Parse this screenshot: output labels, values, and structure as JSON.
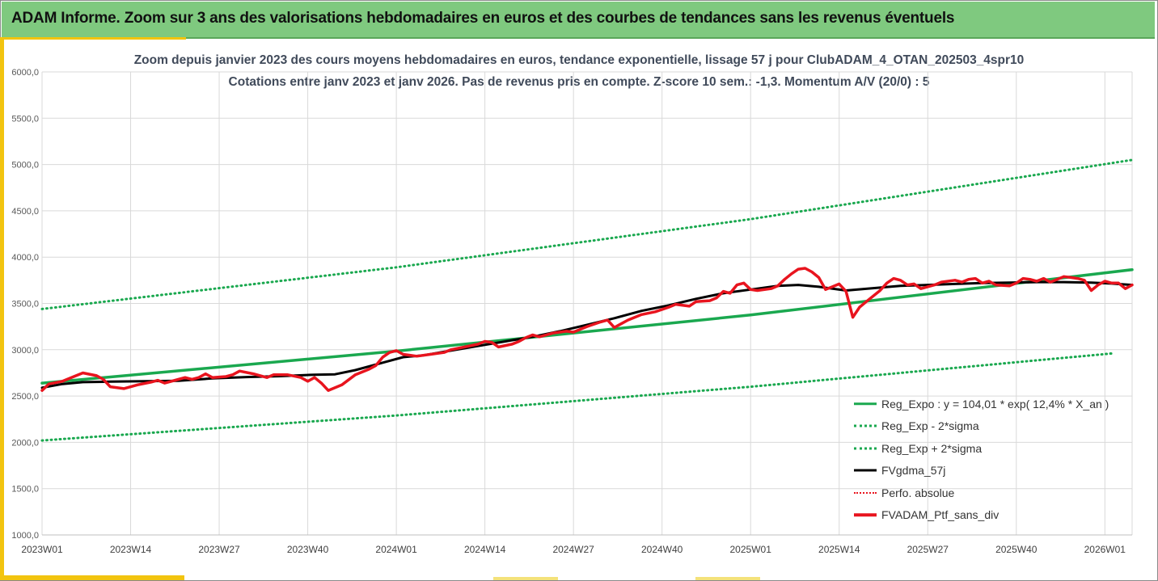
{
  "banner": {
    "title": "ADAM Informe. Zoom sur 3 ans des valorisations hebdomadaires en euros et des courbes de tendances sans les revenus éventuels"
  },
  "colors": {
    "green": "#1aa84f",
    "black": "#000000",
    "red": "#e8141e",
    "banner_bg": "#7fc97f",
    "accent": "#f2c40f"
  },
  "chart_data": {
    "type": "line",
    "title": "Zoom depuis janvier 2023 des cours moyens hebdomadaires  en euros, tendance exponentielle, lissage 57 j pour ClubADAM_4_OTAN_202503_4spr10",
    "subtitle": "Cotations entre janv 2023 et janv 2026. Pas de revenus pris en compte. Z-score 10 sem.: -1,3. Momentum A/V (20/0) : 5",
    "xlabel": "",
    "ylabel": "",
    "ylim": [
      1000,
      6000
    ],
    "y_ticks": [
      "1000,0",
      "1500,0",
      "2000,0",
      "2500,0",
      "3000,0",
      "3500,0",
      "4000,0",
      "4500,0",
      "5000,0",
      "5500,0",
      "6000,0"
    ],
    "x_ticks": [
      "2023W01",
      "2023W14",
      "2023W27",
      "2023W40",
      "2024W01",
      "2024W14",
      "2024W27",
      "2024W40",
      "2025W01",
      "2025W14",
      "2025W27",
      "2025W40",
      "2026W01"
    ],
    "x_tick_weeks": [
      0,
      13,
      26,
      39,
      52,
      65,
      78,
      91,
      104,
      117,
      130,
      143,
      156
    ],
    "x_max_week": 160,
    "grid": true,
    "legend_position": "bottom-right",
    "series": [
      {
        "name": "Reg_Expo : y = 104,01 * exp( 12,4% *  X_an )",
        "style": "solid-green",
        "points": [
          [
            0,
            2640
          ],
          [
            52,
            2985
          ],
          [
            104,
            3375
          ],
          [
            160,
            3865
          ]
        ]
      },
      {
        "name": "Reg_Exp - 2*sigma",
        "style": "dotted-green",
        "points": [
          [
            0,
            2020
          ],
          [
            52,
            2290
          ],
          [
            104,
            2600
          ],
          [
            157,
            2960
          ]
        ]
      },
      {
        "name": "Reg_Exp + 2*sigma",
        "style": "dotted-green",
        "points": [
          [
            0,
            3440
          ],
          [
            52,
            3890
          ],
          [
            104,
            4410
          ],
          [
            160,
            5050
          ]
        ]
      },
      {
        "name": "FVgdma_57j",
        "style": "solid-black",
        "points": [
          [
            0,
            2590
          ],
          [
            3,
            2630
          ],
          [
            6,
            2650
          ],
          [
            10,
            2655
          ],
          [
            15,
            2660
          ],
          [
            20,
            2665
          ],
          [
            25,
            2690
          ],
          [
            30,
            2705
          ],
          [
            35,
            2715
          ],
          [
            40,
            2730
          ],
          [
            43,
            2735
          ],
          [
            46,
            2780
          ],
          [
            50,
            2860
          ],
          [
            53,
            2920
          ],
          [
            56,
            2940
          ],
          [
            60,
            2990
          ],
          [
            64,
            3040
          ],
          [
            68,
            3090
          ],
          [
            72,
            3140
          ],
          [
            76,
            3200
          ],
          [
            80,
            3270
          ],
          [
            84,
            3340
          ],
          [
            88,
            3420
          ],
          [
            92,
            3480
          ],
          [
            96,
            3550
          ],
          [
            100,
            3610
          ],
          [
            104,
            3650
          ],
          [
            108,
            3690
          ],
          [
            111,
            3700
          ],
          [
            114,
            3680
          ],
          [
            118,
            3640
          ],
          [
            122,
            3665
          ],
          [
            126,
            3690
          ],
          [
            130,
            3700
          ],
          [
            134,
            3710
          ],
          [
            138,
            3720
          ],
          [
            142,
            3725
          ],
          [
            146,
            3730
          ],
          [
            150,
            3730
          ],
          [
            154,
            3725
          ],
          [
            157,
            3715
          ],
          [
            160,
            3700
          ]
        ]
      },
      {
        "name": "Perfo. absolue",
        "style": "dotted-red",
        "points": []
      },
      {
        "name": "FVADAM_Ptf_sans_div",
        "style": "solid-red",
        "points": [
          [
            0,
            2560
          ],
          [
            1,
            2630
          ],
          [
            3,
            2660
          ],
          [
            5,
            2720
          ],
          [
            6,
            2750
          ],
          [
            8,
            2720
          ],
          [
            9,
            2680
          ],
          [
            10,
            2600
          ],
          [
            12,
            2580
          ],
          [
            14,
            2620
          ],
          [
            16,
            2650
          ],
          [
            17,
            2670
          ],
          [
            18,
            2640
          ],
          [
            20,
            2680
          ],
          [
            21,
            2700
          ],
          [
            22,
            2680
          ],
          [
            23,
            2700
          ],
          [
            24,
            2740
          ],
          [
            25,
            2700
          ],
          [
            27,
            2710
          ],
          [
            28,
            2730
          ],
          [
            29,
            2770
          ],
          [
            31,
            2740
          ],
          [
            33,
            2700
          ],
          [
            34,
            2730
          ],
          [
            36,
            2730
          ],
          [
            38,
            2700
          ],
          [
            39,
            2660
          ],
          [
            40,
            2700
          ],
          [
            41,
            2640
          ],
          [
            42,
            2560
          ],
          [
            44,
            2620
          ],
          [
            46,
            2730
          ],
          [
            48,
            2790
          ],
          [
            49,
            2830
          ],
          [
            50,
            2920
          ],
          [
            51,
            2970
          ],
          [
            52,
            2990
          ],
          [
            53,
            2950
          ],
          [
            55,
            2930
          ],
          [
            57,
            2950
          ],
          [
            59,
            2970
          ],
          [
            60,
            3000
          ],
          [
            62,
            3030
          ],
          [
            64,
            3060
          ],
          [
            65,
            3090
          ],
          [
            66,
            3080
          ],
          [
            67,
            3030
          ],
          [
            69,
            3060
          ],
          [
            70,
            3090
          ],
          [
            71,
            3130
          ],
          [
            72,
            3160
          ],
          [
            73,
            3140
          ],
          [
            75,
            3180
          ],
          [
            77,
            3200
          ],
          [
            78,
            3190
          ],
          [
            80,
            3250
          ],
          [
            82,
            3300
          ],
          [
            83,
            3320
          ],
          [
            84,
            3240
          ],
          [
            85,
            3280
          ],
          [
            86,
            3320
          ],
          [
            88,
            3380
          ],
          [
            90,
            3410
          ],
          [
            92,
            3460
          ],
          [
            93,
            3490
          ],
          [
            95,
            3470
          ],
          [
            96,
            3520
          ],
          [
            98,
            3530
          ],
          [
            99,
            3560
          ],
          [
            100,
            3630
          ],
          [
            101,
            3610
          ],
          [
            102,
            3700
          ],
          [
            103,
            3720
          ],
          [
            104,
            3650
          ],
          [
            105,
            3640
          ],
          [
            107,
            3660
          ],
          [
            108,
            3690
          ],
          [
            109,
            3760
          ],
          [
            110,
            3820
          ],
          [
            111,
            3870
          ],
          [
            112,
            3880
          ],
          [
            113,
            3840
          ],
          [
            114,
            3780
          ],
          [
            115,
            3650
          ],
          [
            116,
            3680
          ],
          [
            117,
            3710
          ],
          [
            118,
            3630
          ],
          [
            119,
            3350
          ],
          [
            120,
            3460
          ],
          [
            121,
            3520
          ],
          [
            123,
            3640
          ],
          [
            124,
            3720
          ],
          [
            125,
            3770
          ],
          [
            126,
            3750
          ],
          [
            127,
            3700
          ],
          [
            128,
            3710
          ],
          [
            129,
            3660
          ],
          [
            131,
            3700
          ],
          [
            132,
            3730
          ],
          [
            134,
            3750
          ],
          [
            135,
            3730
          ],
          [
            136,
            3760
          ],
          [
            137,
            3770
          ],
          [
            138,
            3720
          ],
          [
            139,
            3740
          ],
          [
            140,
            3700
          ],
          [
            142,
            3690
          ],
          [
            143,
            3720
          ],
          [
            144,
            3770
          ],
          [
            145,
            3760
          ],
          [
            146,
            3740
          ],
          [
            147,
            3770
          ],
          [
            148,
            3730
          ],
          [
            150,
            3790
          ],
          [
            151,
            3780
          ],
          [
            152,
            3770
          ],
          [
            153,
            3750
          ],
          [
            154,
            3640
          ],
          [
            155,
            3700
          ],
          [
            156,
            3740
          ],
          [
            157,
            3720
          ],
          [
            158,
            3720
          ],
          [
            159,
            3660
          ],
          [
            160,
            3700
          ]
        ]
      }
    ]
  }
}
